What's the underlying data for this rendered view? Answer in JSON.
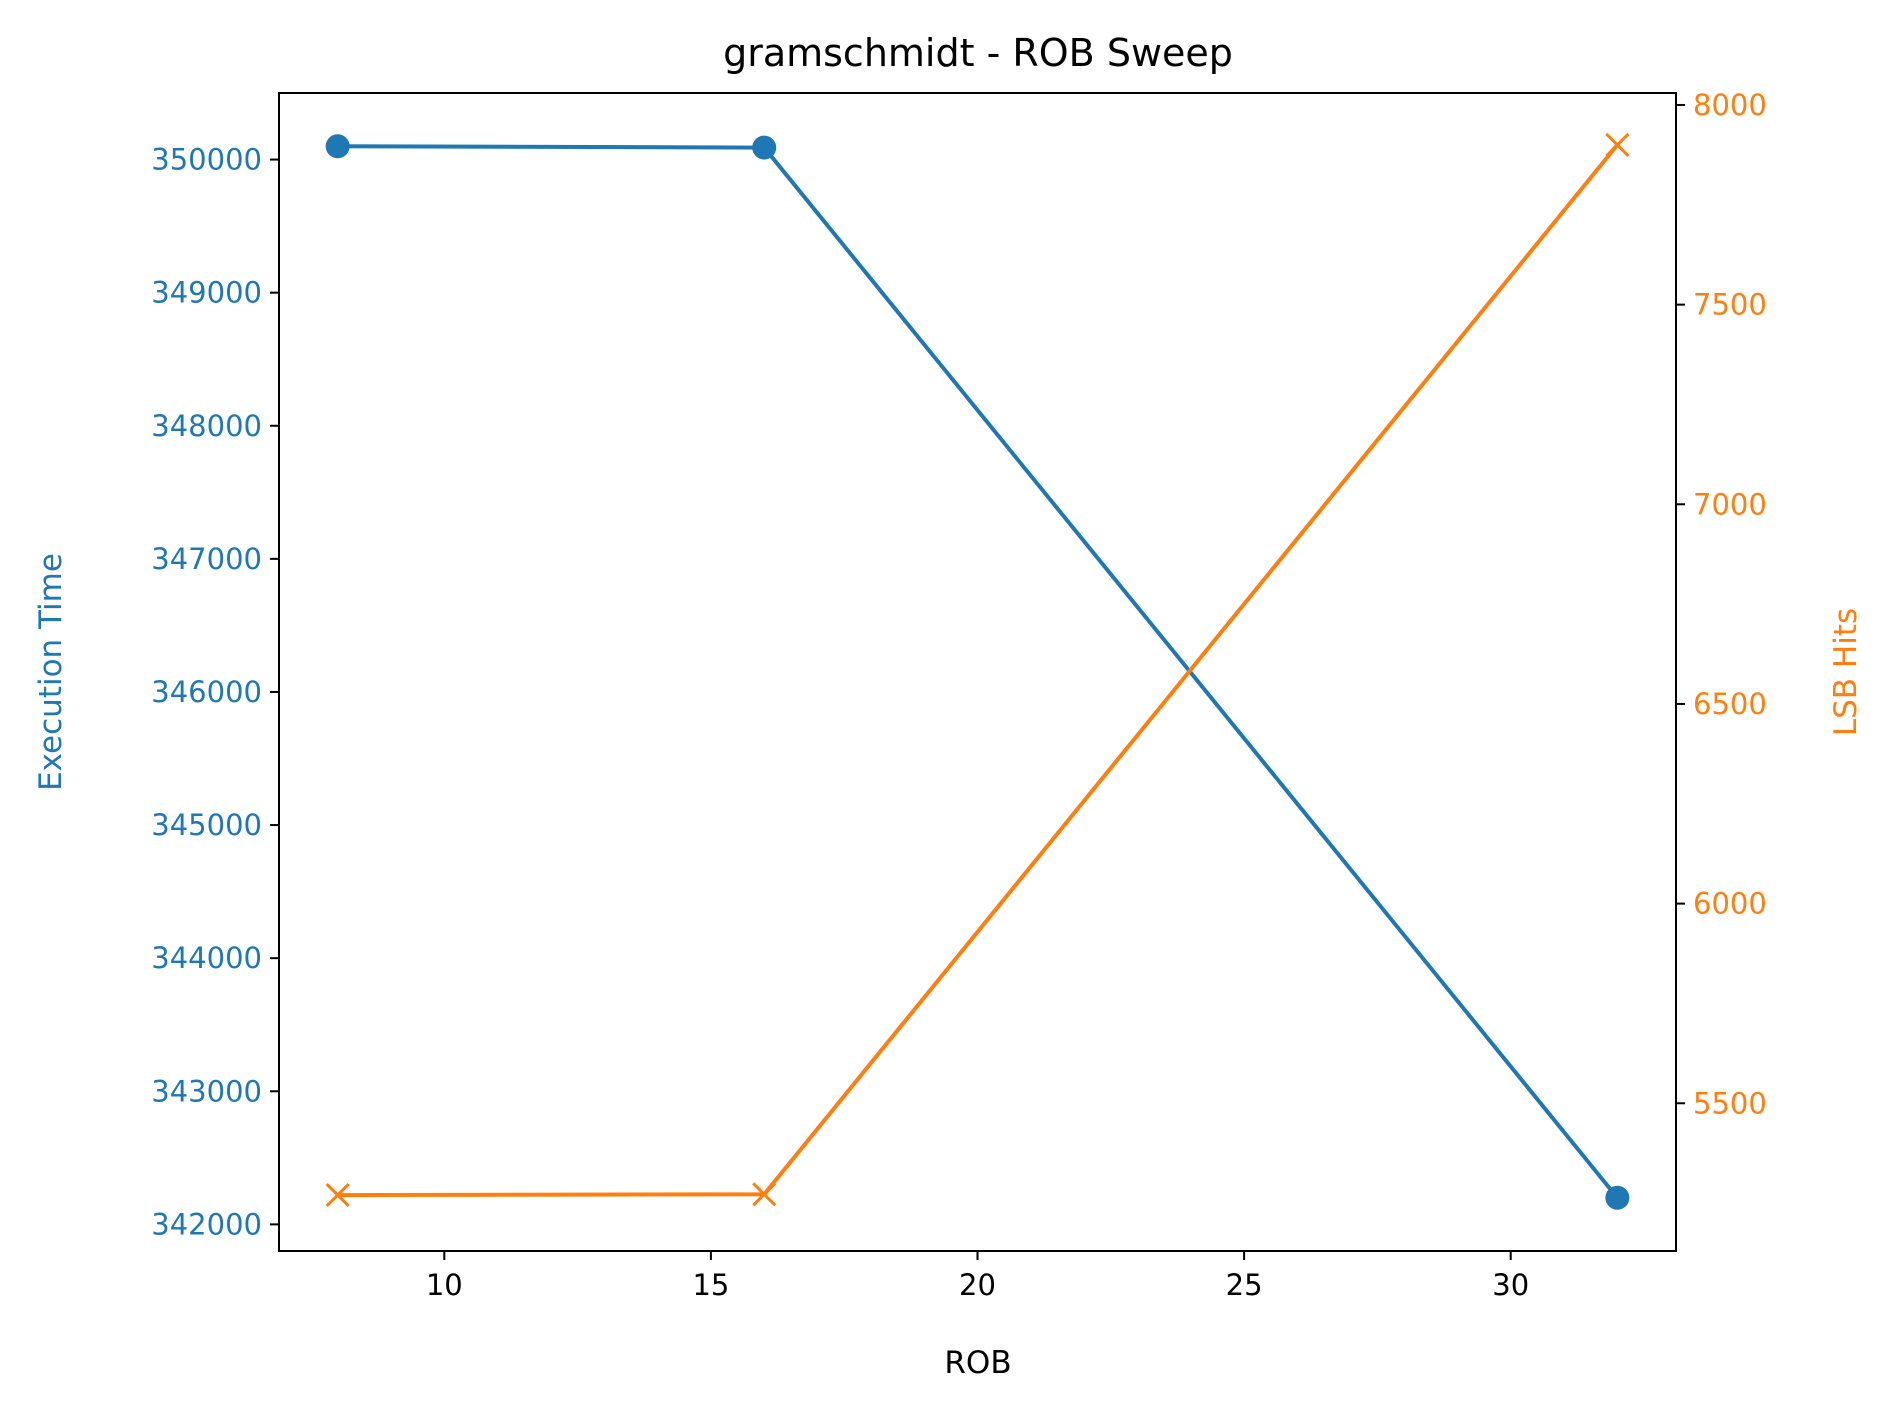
{
  "chart_data": {
    "type": "line",
    "title": "gramschmidt - ROB Sweep",
    "xlabel": "ROB",
    "ylabel_left": "Execution Time",
    "ylabel_right": "LSB Hits",
    "x": [
      8,
      16,
      32
    ],
    "xlim": [
      6.9,
      33.1
    ],
    "xticks": [
      10,
      15,
      20,
      25,
      30
    ],
    "ylim_left": [
      341800,
      350500
    ],
    "yticks_left": [
      342000,
      343000,
      344000,
      345000,
      346000,
      347000,
      348000,
      349000,
      350000
    ],
    "ylim_right": [
      5130,
      8030
    ],
    "yticks_right": [
      5500,
      6000,
      6500,
      7000,
      7500,
      8000
    ],
    "grid": false,
    "series": [
      {
        "axis": "left",
        "color": "#1f77b4",
        "marker": "circle",
        "values": [
          350100,
          350090,
          342200
        ]
      },
      {
        "axis": "right",
        "color": "#ff7f0e",
        "marker": "x",
        "values": [
          5270,
          5272,
          7900
        ]
      }
    ]
  }
}
